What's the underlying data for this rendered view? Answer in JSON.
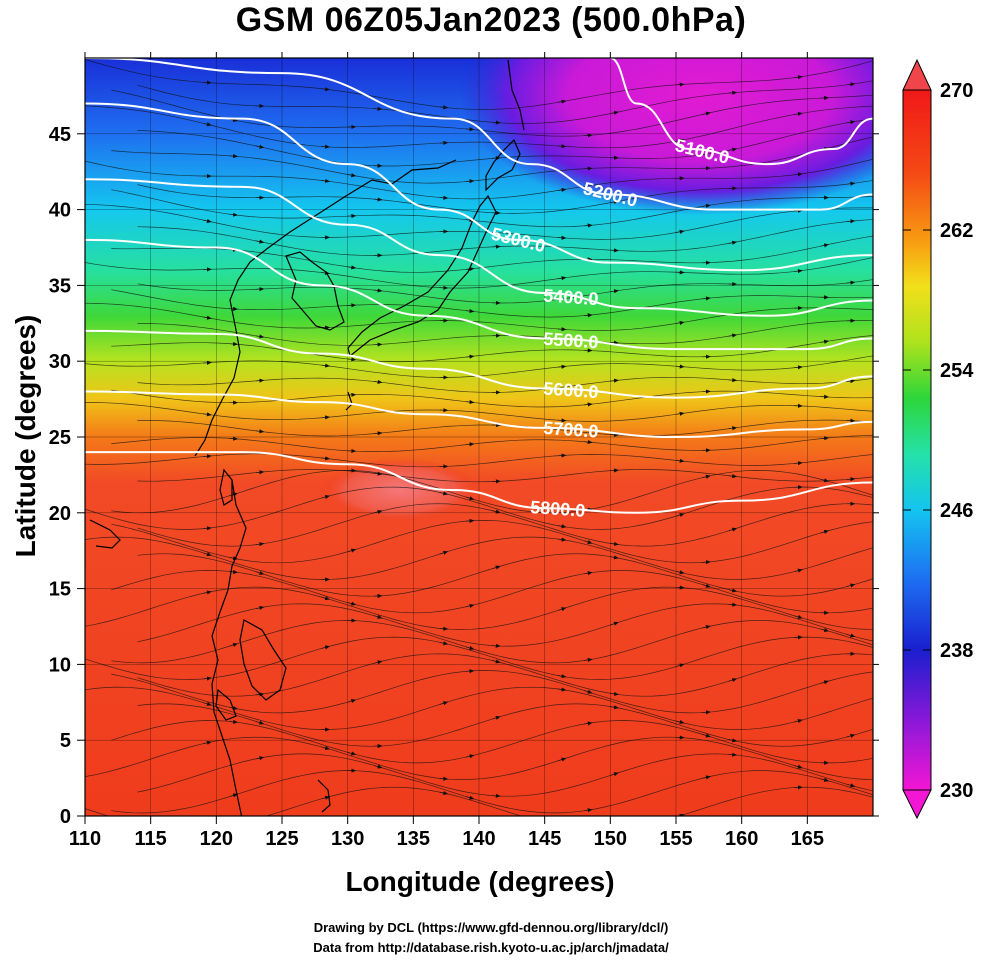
{
  "title": "GSM 06Z05Jan2023 (500.0hPa)",
  "xlabel": "Longitude (degrees)",
  "ylabel": "Latitude  (degrees)",
  "credits": {
    "drawing": "Drawing by DCL (https://www.gfd-dennou.org/library/dcl/)",
    "data": "Data from http://database.rish.kyoto-u.ac.jp/arch/jmadata/"
  },
  "x_ticks": [
    "110",
    "115",
    "120",
    "125",
    "130",
    "135",
    "140",
    "145",
    "150",
    "155",
    "160",
    "165"
  ],
  "y_ticks": [
    "0",
    "5",
    "10",
    "15",
    "20",
    "25",
    "30",
    "35",
    "40",
    "45"
  ],
  "colorbar": {
    "labels": [
      "270",
      "262",
      "254",
      "246",
      "238",
      "230"
    ],
    "min": 230,
    "max": 270
  },
  "contour_labels": [
    "5100.0",
    "5200.0",
    "5300.0",
    "5400.0",
    "5500.0",
    "5600.0",
    "5700.0",
    "5800.0"
  ],
  "chart_data": {
    "type": "heatmap",
    "title": "GSM 06Z05Jan2023 (500.0hPa)",
    "xlabel": "Longitude (degrees)",
    "ylabel": "Latitude  (degrees)",
    "xlim": [
      110,
      170
    ],
    "ylim": [
      0,
      50
    ],
    "color_scale": {
      "min": 230,
      "max": 270,
      "ticks": [
        230,
        238,
        246,
        254,
        262,
        270
      ]
    },
    "contours": [
      {
        "level": 5100.0,
        "points": [
          [
            150,
            50
          ],
          [
            152,
            47
          ],
          [
            156,
            44
          ],
          [
            162,
            43
          ],
          [
            167,
            44
          ],
          [
            170,
            46
          ]
        ]
      },
      {
        "level": 5200.0,
        "points": [
          [
            110,
            50
          ],
          [
            125,
            49
          ],
          [
            138,
            46
          ],
          [
            144,
            43
          ],
          [
            150,
            41
          ],
          [
            158,
            40
          ],
          [
            166,
            40
          ],
          [
            170,
            41
          ]
        ]
      },
      {
        "level": 5300.0,
        "points": [
          [
            110,
            47
          ],
          [
            122,
            46
          ],
          [
            130,
            43
          ],
          [
            137,
            40
          ],
          [
            143,
            38
          ],
          [
            150,
            36.5
          ],
          [
            160,
            36
          ],
          [
            170,
            37
          ]
        ]
      },
      {
        "level": 5400.0,
        "points": [
          [
            110,
            42
          ],
          [
            122,
            41.5
          ],
          [
            130,
            39
          ],
          [
            137,
            37
          ],
          [
            145,
            34.5
          ],
          [
            152,
            33.5
          ],
          [
            162,
            33
          ],
          [
            170,
            34
          ]
        ]
      },
      {
        "level": 5500.0,
        "points": [
          [
            110,
            38
          ],
          [
            120,
            37.5
          ],
          [
            128,
            35
          ],
          [
            136,
            33
          ],
          [
            145,
            31.5
          ],
          [
            155,
            30.8
          ],
          [
            165,
            30.8
          ],
          [
            170,
            31.5
          ]
        ]
      },
      {
        "level": 5600.0,
        "points": [
          [
            110,
            32
          ],
          [
            120,
            31.8
          ],
          [
            128,
            30.5
          ],
          [
            136,
            29.5
          ],
          [
            145,
            28.2
          ],
          [
            155,
            27.6
          ],
          [
            165,
            28.2
          ],
          [
            170,
            29
          ]
        ]
      },
      {
        "level": 5700.0,
        "points": [
          [
            110,
            28
          ],
          [
            120,
            27.8
          ],
          [
            128,
            27.3
          ],
          [
            136,
            26.5
          ],
          [
            145,
            25.6
          ],
          [
            155,
            25
          ],
          [
            165,
            25.5
          ],
          [
            170,
            26
          ]
        ]
      },
      {
        "level": 5800.0,
        "points": [
          [
            110,
            24
          ],
          [
            122,
            24
          ],
          [
            130,
            23.2
          ],
          [
            138,
            21.5
          ],
          [
            145,
            20.3
          ],
          [
            152,
            20
          ],
          [
            160,
            20.8
          ],
          [
            170,
            22
          ]
        ]
      }
    ]
  }
}
